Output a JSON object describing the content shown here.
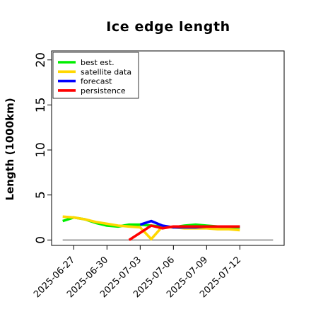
{
  "chart_data": {
    "type": "line",
    "title": "Ice edge length",
    "xlabel": "",
    "ylabel": "Length (1000km)",
    "ylim": [
      -0.6,
      21
    ],
    "xlim": [
      "2025-06-25",
      "2025-07-16"
    ],
    "yticks": [
      0,
      5,
      10,
      15,
      20
    ],
    "xticks": [
      "2025-06-27",
      "2025-06-30",
      "2025-07-03",
      "2025-07-06",
      "2025-07-09",
      "2025-07-12"
    ],
    "highlighted_xtick": "2025-07-03",
    "highlight_color": "#228b22",
    "grid": false,
    "legend_position": "top-left",
    "reference_line": {
      "y": 0,
      "from": "2025-06-26",
      "to": "2025-07-15",
      "color": "#808080"
    },
    "series": [
      {
        "name": "best est.",
        "color": "#00ee00",
        "x": [
          "2025-06-26",
          "2025-06-27",
          "2025-06-28",
          "2025-06-29",
          "2025-06-30",
          "2025-07-01",
          "2025-07-02",
          "2025-07-03",
          "2025-07-04",
          "2025-07-05",
          "2025-07-06",
          "2025-07-07",
          "2025-07-08",
          "2025-07-09",
          "2025-07-10",
          "2025-07-11",
          "2025-07-12"
        ],
        "values": [
          2.1,
          2.5,
          2.3,
          1.9,
          1.6,
          1.5,
          1.7,
          1.7,
          1.6,
          1.5,
          1.4,
          1.6,
          1.7,
          1.6,
          1.5,
          1.4,
          1.4
        ]
      },
      {
        "name": "satellite data",
        "color": "#ffd700",
        "x": [
          "2025-06-26",
          "2025-06-27",
          "2025-06-28",
          "2025-06-29",
          "2025-06-30",
          "2025-07-01",
          "2025-07-02",
          "2025-07-03",
          "2025-07-04",
          "2025-07-05",
          "2025-07-06",
          "2025-07-07",
          "2025-07-08",
          "2025-07-09",
          "2025-07-10",
          "2025-07-11",
          "2025-07-12"
        ],
        "values": [
          2.6,
          2.5,
          2.3,
          2.0,
          1.8,
          1.6,
          1.5,
          1.4,
          0.1,
          1.5,
          1.4,
          1.3,
          1.3,
          1.3,
          1.2,
          1.2,
          1.1
        ]
      },
      {
        "name": "forecast",
        "color": "#0000ff",
        "x": [
          "2025-07-03",
          "2025-07-04",
          "2025-07-05",
          "2025-07-06",
          "2025-07-07",
          "2025-07-08",
          "2025-07-09",
          "2025-07-10",
          "2025-07-11",
          "2025-07-12"
        ],
        "values": [
          1.7,
          2.1,
          1.6,
          1.4,
          1.4,
          1.4,
          1.5,
          1.5,
          1.5,
          1.5
        ]
      },
      {
        "name": "persistence",
        "color": "#ff0000",
        "x": [
          "2025-07-02",
          "2025-07-03",
          "2025-07-04",
          "2025-07-05",
          "2025-07-06",
          "2025-07-07",
          "2025-07-08",
          "2025-07-09",
          "2025-07-10",
          "2025-07-11",
          "2025-07-12"
        ],
        "values": [
          0.0,
          0.8,
          1.6,
          1.3,
          1.5,
          1.5,
          1.5,
          1.5,
          1.5,
          1.5,
          1.5
        ]
      }
    ]
  }
}
